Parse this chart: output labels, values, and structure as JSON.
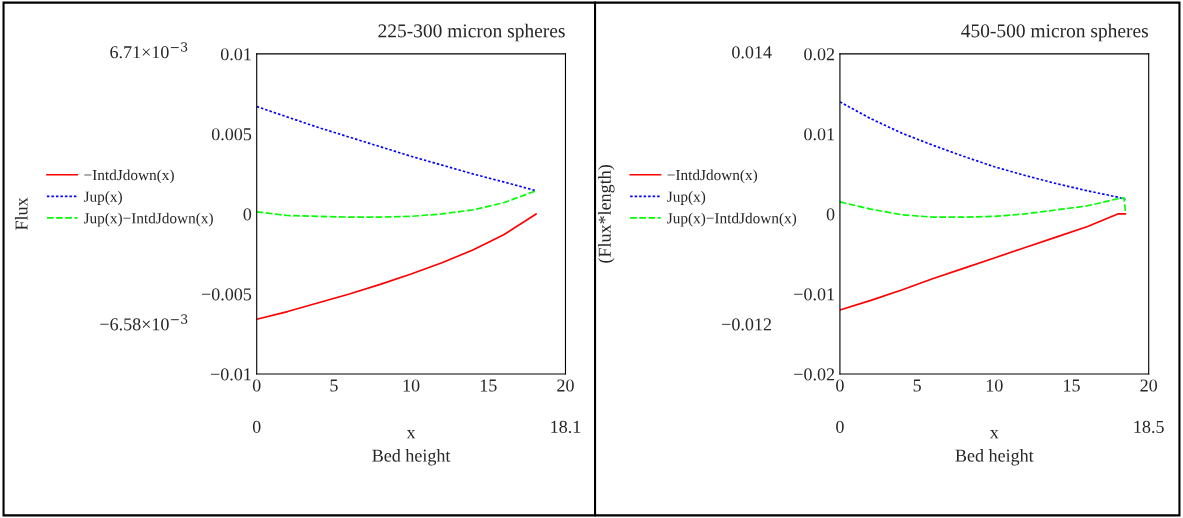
{
  "chart_data": [
    {
      "type": "line",
      "title": "225-300 micron spheres",
      "xlabel": "x",
      "ylabel": "Flux",
      "x": [
        0,
        2,
        4,
        6,
        8,
        10,
        12,
        14,
        16,
        18.1
      ],
      "series": [
        {
          "name": "−IntdJdown(x)",
          "color": "#ff0000",
          "line_style": "solid",
          "values": [
            -0.00658,
            -0.0061,
            -0.00555,
            -0.005,
            -0.0044,
            -0.00375,
            -0.00305,
            -0.00225,
            -0.0013,
            0
          ]
        },
        {
          "name": "Jup(x)",
          "color": "#0000ff",
          "line_style": "dotted",
          "values": [
            0.00671,
            0.00605,
            0.0054,
            0.0048,
            0.0042,
            0.0036,
            0.00305,
            0.0025,
            0.002,
            0.00145
          ]
        },
        {
          "name": "Jup(x)−IntdJdown(x)",
          "color": "#00ff00",
          "line_style": "dashed",
          "values": [
            0.00013,
            -0.0001,
            -0.00015,
            -0.0002,
            -0.0002,
            -0.00015,
            0,
            0.00025,
            0.0007,
            0.00145
          ]
        }
      ],
      "xlim": [
        0,
        20
      ],
      "xticks": [
        0,
        5,
        10,
        15,
        20
      ],
      "ylim": [
        -0.01,
        0.01
      ],
      "yticks": [
        {
          "value": -0.01,
          "label": "−0.01"
        },
        {
          "value": -0.005,
          "label": "−0.005"
        },
        0,
        0.005,
        0.01
      ],
      "legend": "left",
      "grid": false,
      "annotations": [
        "6.71×10$^{−3}$",
        "−6.58×10$^{−3}$",
        "0",
        "18.1",
        "Bed height"
      ]
    },
    {
      "type": "line",
      "title": "450-500 micron spheres",
      "xlabel": "x",
      "ylabel": "(Flux*length)",
      "x": [
        0,
        2,
        4,
        6,
        8,
        10,
        12,
        14,
        16,
        18,
        18.5
      ],
      "series": [
        {
          "name": "−IntdJdown(x)",
          "color": "#ff0000",
          "line_style": "solid",
          "values": [
            -0.012,
            -0.0108,
            -0.0095,
            -0.0081,
            -0.0068,
            -0.0055,
            -0.0042,
            -0.0029,
            -0.0016,
            0,
            0
          ]
        },
        {
          "name": "Jup(x)",
          "color": "#0000ff",
          "line_style": "dotted",
          "values": [
            0.014,
            0.0119,
            0.0101,
            0.0086,
            0.0072,
            0.0059,
            0.0048,
            0.0038,
            0.0029,
            0.0021,
            0.0018
          ]
        },
        {
          "name": "Jup(x)−IntdJdown(x)",
          "color": "#00ff00",
          "line_style": "dashed",
          "x": [
            0,
            2,
            4,
            6,
            8,
            10,
            12,
            14,
            16,
            18,
            18.4,
            18.5
          ],
          "values": [
            0.0015,
            0.0006,
            -0.0001,
            -0.0004,
            -0.0004,
            -0.0003,
            0,
            0.0005,
            0.001,
            0.0019,
            0.002,
            0.0002
          ]
        }
      ],
      "xlim": [
        0,
        20
      ],
      "xticks": [
        0,
        5,
        10,
        15,
        20
      ],
      "ylim": [
        -0.02,
        0.02
      ],
      "yticks": [
        {
          "value": -0.02,
          "label": "−0.02"
        },
        {
          "value": -0.01,
          "label": "−0.01"
        },
        0,
        0.01,
        0.02
      ],
      "legend": "left",
      "grid": false,
      "annotations": [
        "0.014",
        "−0.012",
        "0",
        "18.5",
        "Bed height"
      ]
    }
  ]
}
